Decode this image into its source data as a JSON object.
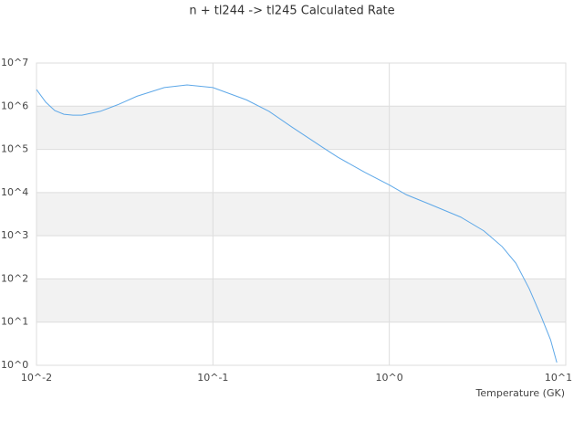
{
  "chart_data": {
    "type": "line",
    "title": "n + tl244 -> tl245 Calculated Rate",
    "x_label": "Temperature (GK)",
    "log_x": true,
    "log_y": true,
    "grid": true,
    "band_color": "#f2f2f2",
    "xlim": [
      0.01,
      10
    ],
    "ylim": [
      1,
      10000000
    ],
    "xticks": [
      {
        "value": 0.01,
        "label": "10^-2"
      },
      {
        "value": 0.1,
        "label": "10^-1"
      },
      {
        "value": 1,
        "label": "10^0"
      },
      {
        "value": 10,
        "label": "10^1"
      }
    ],
    "yticks": [
      {
        "value": 1,
        "label": "10^0"
      },
      {
        "value": 10,
        "label": "10^1"
      },
      {
        "value": 100,
        "label": "10^2"
      },
      {
        "value": 1000,
        "label": "10^3"
      },
      {
        "value": 10000,
        "label": "10^4"
      },
      {
        "value": 100000,
        "label": "10^5"
      },
      {
        "value": 1000000,
        "label": "10^6"
      },
      {
        "value": 10000000,
        "label": "10^7"
      }
    ],
    "x": [
      0.01,
      0.0113,
      0.0127,
      0.0143,
      0.0161,
      0.0181,
      0.023,
      0.0292,
      0.0371,
      0.053,
      0.0714,
      0.1,
      0.155,
      0.208,
      0.28,
      0.425,
      0.51,
      0.73,
      1.0,
      1.25,
      1.67,
      2.54,
      3.43,
      4.36,
      5.22,
      6.2,
      7.2,
      8.2,
      8.9
    ],
    "series": [
      {
        "color": "#5ea8e8",
        "values": [
          2430000,
          1230000,
          790000,
          650000,
          620000,
          620000,
          760000,
          1100000,
          1700000,
          2700000,
          3100000,
          2700000,
          1400000,
          760000,
          330000,
          107000,
          66000,
          29000,
          15000,
          8900,
          5500,
          2700,
          1300,
          560,
          230,
          60,
          14.6,
          3.9,
          1.16
        ]
      }
    ]
  }
}
